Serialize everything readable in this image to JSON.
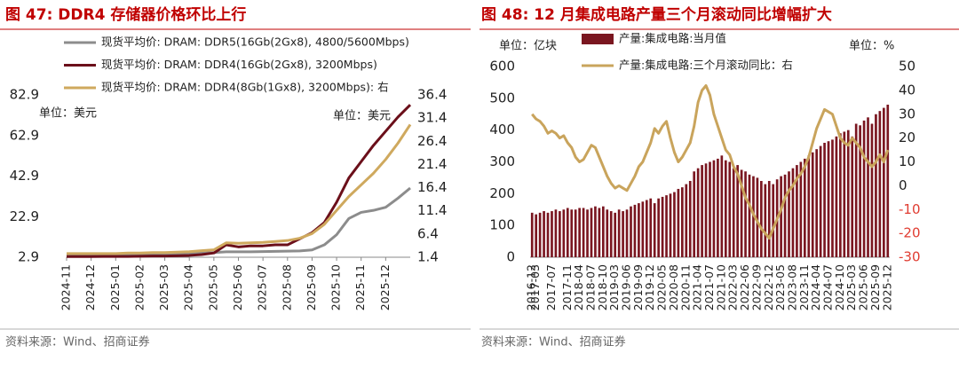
{
  "chart_data": [
    {
      "type": "line",
      "title": "图 47:  DDR4 存储器价格环比上行",
      "source": "资料来源：Wind、招商证券",
      "annotations": [
        "单位：美元",
        "单位：美元"
      ],
      "legend": "upper left",
      "categories": [
        "2024-11",
        null,
        "2024-12",
        null,
        "2025-01",
        null,
        "2025-02",
        null,
        "2025-03",
        null,
        "2025-04",
        null,
        "2025-05",
        null,
        "2025-06",
        null,
        "2025-07",
        null,
        "2025-08",
        null,
        "2025-09",
        null,
        "2025-10",
        null,
        "2025-11",
        null,
        "2025-12",
        null,
        null
      ],
      "ylim": [
        2.9,
        82.9
      ],
      "yticks": [
        2.9,
        22.9,
        42.9,
        62.9,
        82.9
      ],
      "y2lim": [
        1.4,
        36.4
      ],
      "y2ticks": [
        1.4,
        6.4,
        11.4,
        16.4,
        21.4,
        26.4,
        31.4,
        36.4
      ],
      "series": [
        {
          "name": "现货平均价: DRAM: DDR5(16Gb(2Gx8), 4800/5600Mbps)",
          "color": "#8c8c8c",
          "values": [
            4.5,
            4.4,
            4.3,
            4.3,
            4.3,
            4.4,
            4.5,
            4.6,
            4.7,
            4.8,
            4.9,
            5.0,
            5.2,
            5.6,
            5.6,
            5.6,
            5.7,
            5.8,
            5.9,
            6.0,
            6.5,
            9,
            14,
            22,
            25,
            26,
            27.5,
            32,
            37
          ]
        },
        {
          "name": "现货平均价: DRAM: DDR4(16Gb(2Gx8), 3200Mbps)",
          "color": "#6b0f1a",
          "values": [
            3.2,
            3.2,
            3.2,
            3.3,
            3.3,
            3.3,
            3.4,
            3.5,
            3.5,
            3.6,
            3.8,
            4.2,
            5,
            9,
            8,
            8.5,
            8.5,
            9,
            9,
            12,
            15,
            20,
            30,
            42,
            50,
            58,
            65,
            72,
            78
          ]
        },
        {
          "name": "现货平均价: DRAM: DDR4(8Gb(1Gx8), 3200Mbps): 右",
          "color": "#cfa95e",
          "axis": "y2",
          "values": [
            2.2,
            2.2,
            2.2,
            2.2,
            2.2,
            2.3,
            2.3,
            2.4,
            2.4,
            2.5,
            2.6,
            2.8,
            3,
            4.5,
            4.4,
            4.5,
            4.6,
            4.8,
            5.0,
            5.5,
            6.5,
            8.5,
            11.5,
            14.5,
            17,
            19.5,
            22.5,
            26,
            30
          ]
        }
      ]
    },
    {
      "type": "bar",
      "title": "图 48:  12 月集成电路产量三个月滚动同比增幅扩大",
      "source": "资料来源：Wind、招商证券",
      "annotations": [
        "单位：亿块",
        "单位：%"
      ],
      "legend": "upper left",
      "negative_tick_color": "#e03c31",
      "categories": [
        "2016-12",
        "2017-03",
        null,
        null,
        null,
        "2017-07",
        null,
        null,
        null,
        "2017-11",
        null,
        null,
        "2018-04",
        null,
        null,
        "2018-07",
        null,
        null,
        "2018-10",
        null,
        null,
        "2019-03",
        null,
        null,
        "2019-06",
        null,
        null,
        "2019-09",
        null,
        null,
        "2019-12",
        null,
        null,
        "2020-05",
        null,
        null,
        "2020-08",
        null,
        null,
        "2020-11",
        null,
        null,
        "2021-04",
        null,
        null,
        "2021-07",
        null,
        null,
        "2021-10",
        null,
        null,
        "2022-03",
        null,
        null,
        "2022-06",
        null,
        null,
        "2022-09",
        null,
        null,
        "2022-12",
        null,
        null,
        "2023-05",
        null,
        null,
        "2023-08",
        null,
        null,
        "2023-11",
        null,
        null,
        "2024-04",
        null,
        null,
        "2024-07",
        null,
        null,
        "2024-10",
        null,
        null,
        "2025-03",
        null,
        null,
        "2025-06",
        null,
        null,
        "2025-09",
        null,
        null,
        "2025-12"
      ],
      "ylim": [
        0,
        600
      ],
      "yticks": [
        0,
        100,
        200,
        300,
        400,
        500,
        600
      ],
      "y2lim": [
        -30,
        50
      ],
      "y2ticks": [
        -30,
        -20,
        -10,
        0,
        10,
        20,
        30,
        40,
        50
      ],
      "series": [
        {
          "name": "产量:集成电路:当月值",
          "color": "#7a1620",
          "type": "bar",
          "values": [
            140,
            135,
            140,
            145,
            140,
            145,
            150,
            145,
            150,
            155,
            150,
            150,
            155,
            155,
            150,
            155,
            160,
            155,
            160,
            150,
            145,
            140,
            150,
            145,
            150,
            160,
            165,
            170,
            175,
            180,
            185,
            170,
            185,
            190,
            195,
            200,
            205,
            215,
            220,
            230,
            240,
            270,
            280,
            290,
            295,
            300,
            305,
            310,
            320,
            305,
            300,
            280,
            290,
            275,
            270,
            260,
            255,
            250,
            240,
            230,
            240,
            230,
            245,
            255,
            260,
            270,
            280,
            290,
            300,
            310,
            320,
            330,
            340,
            350,
            360,
            365,
            370,
            380,
            390,
            395,
            400,
            380,
            420,
            415,
            430,
            440,
            420,
            450,
            460,
            470,
            480
          ]
        },
        {
          "name": "产量:集成电路:三个月滚动同比：右",
          "color": "#c9a45c",
          "type": "line",
          "axis": "y2",
          "values": [
            30,
            28,
            27,
            25,
            22,
            23,
            22,
            20,
            21,
            18,
            16,
            12,
            10,
            11,
            14,
            17,
            16,
            12,
            8,
            4,
            1,
            -1,
            0,
            -1,
            -2,
            1,
            4,
            8,
            10,
            14,
            18,
            24,
            22,
            25,
            27,
            20,
            14,
            10,
            12,
            15,
            18,
            25,
            35,
            40,
            42,
            38,
            30,
            25,
            20,
            15,
            13,
            8,
            5,
            0,
            -5,
            -8,
            -12,
            -15,
            -18,
            -20,
            -22,
            -18,
            -14,
            -10,
            -5,
            -2,
            0,
            3,
            5,
            8,
            12,
            18,
            24,
            28,
            32,
            31,
            30,
            25,
            20,
            18,
            17,
            20,
            18,
            16,
            12,
            10,
            8,
            10,
            13,
            10,
            15
          ]
        }
      ]
    }
  ]
}
